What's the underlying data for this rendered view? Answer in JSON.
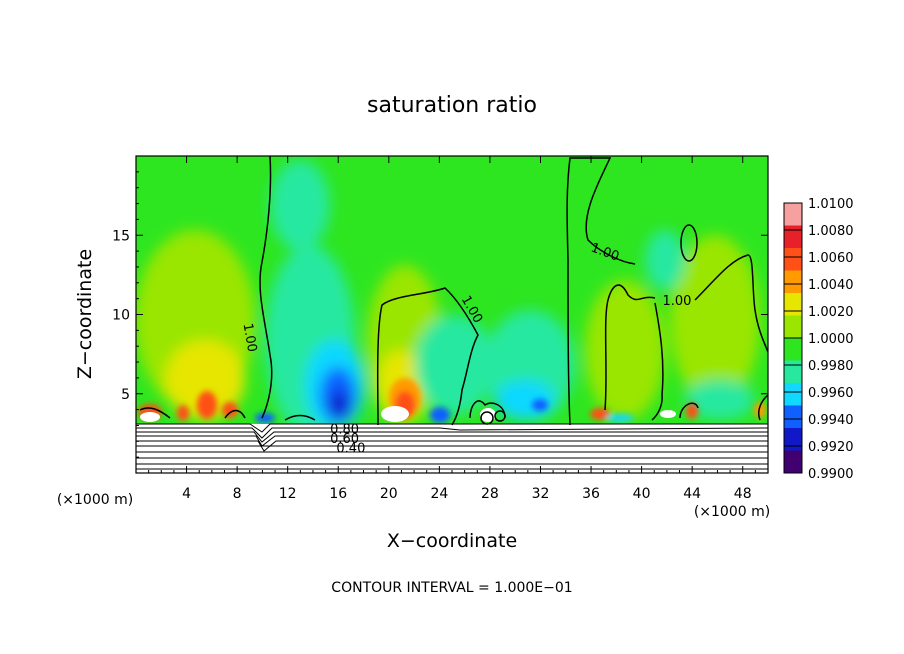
{
  "chart_data": {
    "type": "heatmap",
    "title": "saturation ratio",
    "xlabel": "X−coordinate",
    "ylabel": "Z−coordinate",
    "x_unit": "(×1000 m)",
    "y_unit": "(×1000 m)",
    "xlim": [
      0,
      50
    ],
    "ylim": [
      0,
      20
    ],
    "x_ticks": [
      4,
      8,
      12,
      16,
      20,
      24,
      28,
      32,
      36,
      40,
      44,
      48
    ],
    "y_ticks": [
      5,
      10,
      15
    ],
    "colorbar": {
      "min": 0.99,
      "max": 1.01,
      "labels": [
        "1.0100",
        "1.0080",
        "1.0060",
        "1.0040",
        "1.0020",
        "1.0000",
        "0.9980",
        "0.9960",
        "0.9940",
        "0.9920",
        "0.9900"
      ],
      "colors": [
        "#f7a0a0",
        "#e8202a",
        "#ff5018",
        "#ff9a00",
        "#e6e600",
        "#9ae600",
        "#2ee620",
        "#28e8a0",
        "#10d8ff",
        "#1060ff",
        "#1018c8",
        "#400070"
      ]
    },
    "contour_labels": [
      {
        "text": "1.00",
        "x": 8.7,
        "z": 8.5,
        "rot": 80
      },
      {
        "text": "1.00",
        "x": 26.3,
        "z": 10.2,
        "rot": 60
      },
      {
        "text": "1.00",
        "x": 37.0,
        "z": 13.7,
        "rot": 20
      },
      {
        "text": "1.00",
        "x": 42.8,
        "z": 10.6,
        "rot": 0
      },
      {
        "text": "0.80",
        "x": 16.5,
        "z": 2.5,
        "rot": 0
      },
      {
        "text": "0.60",
        "x": 16.5,
        "z": 1.9,
        "rot": 0
      },
      {
        "text": "0.40",
        "x": 17.0,
        "z": 1.3,
        "rot": 0
      }
    ],
    "background_value": 1.0
  },
  "contour_interval_text": "CONTOUR INTERVAL = 1.000E−01"
}
